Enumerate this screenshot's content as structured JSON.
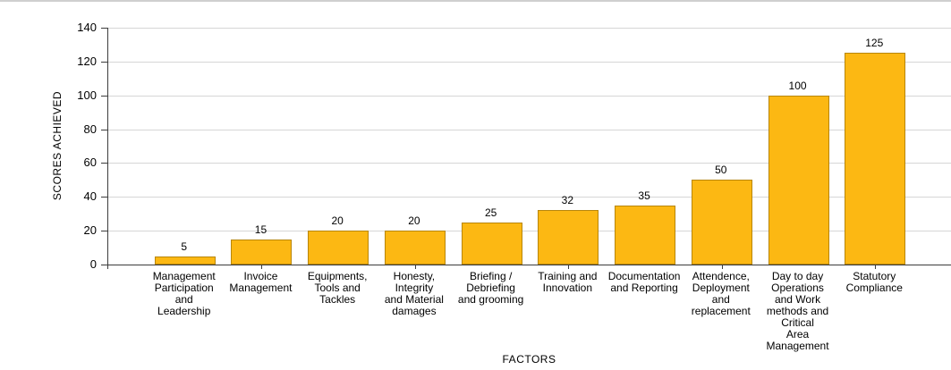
{
  "chart_data": {
    "type": "bar",
    "title": "",
    "xlabel": "FACTORS",
    "ylabel": "SCORES ACHIEVED",
    "categories": [
      "Management\nParticipation\nand\nLeadership",
      "Invoice\nManagement",
      "Equipments,\nTools and\nTackles",
      "Honesty,\nIntegrity\nand Material\ndamages",
      "Briefing /\nDebriefing\nand grooming",
      "Training and\nInnovation",
      "Documentation\nand Reporting",
      "Attendence,\nDeployment\nand\nreplacement",
      "Day to day\nOperations\nand Work\nmethods and\nCritical\nArea\nManagement",
      "Statutory\nCompliance"
    ],
    "values": [
      5,
      15,
      20,
      20,
      25,
      32,
      35,
      50,
      100,
      125
    ],
    "value_labels": [
      "5",
      "15",
      "20",
      "20",
      "25",
      "32",
      "35",
      "50",
      "100",
      "125"
    ],
    "ylim": [
      0,
      140
    ],
    "yticks": [
      0,
      20,
      40,
      60,
      80,
      100,
      120,
      140
    ],
    "grid": "horizontal",
    "legend": "none",
    "colors": {
      "bar_fill": "#FCB813",
      "bar_border": "#B8860B",
      "gridline": "#D6D6D6",
      "axis": "#3C3C3C",
      "text": "#000000",
      "page_border": "#CFCFCF"
    }
  }
}
